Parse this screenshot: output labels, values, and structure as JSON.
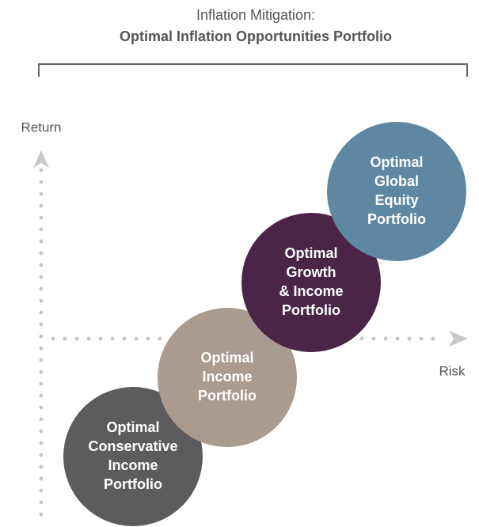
{
  "header": {
    "title": "Inflation Mitigation:",
    "subtitle": "Optimal Inflation Opportunities Portfolio"
  },
  "axes": {
    "y_label": "Return",
    "x_label": "Risk"
  },
  "nodes": [
    {
      "lines": [
        "Optimal",
        "Conservative",
        "Income",
        "Portfolio"
      ]
    },
    {
      "lines": [
        "Optimal",
        "Income",
        "Portfolio"
      ]
    },
    {
      "lines": [
        "Optimal",
        "Growth",
        "& Income",
        "Portfolio"
      ]
    },
    {
      "lines": [
        "Optimal",
        "Global",
        "Equity",
        "Portfolio"
      ]
    }
  ]
}
